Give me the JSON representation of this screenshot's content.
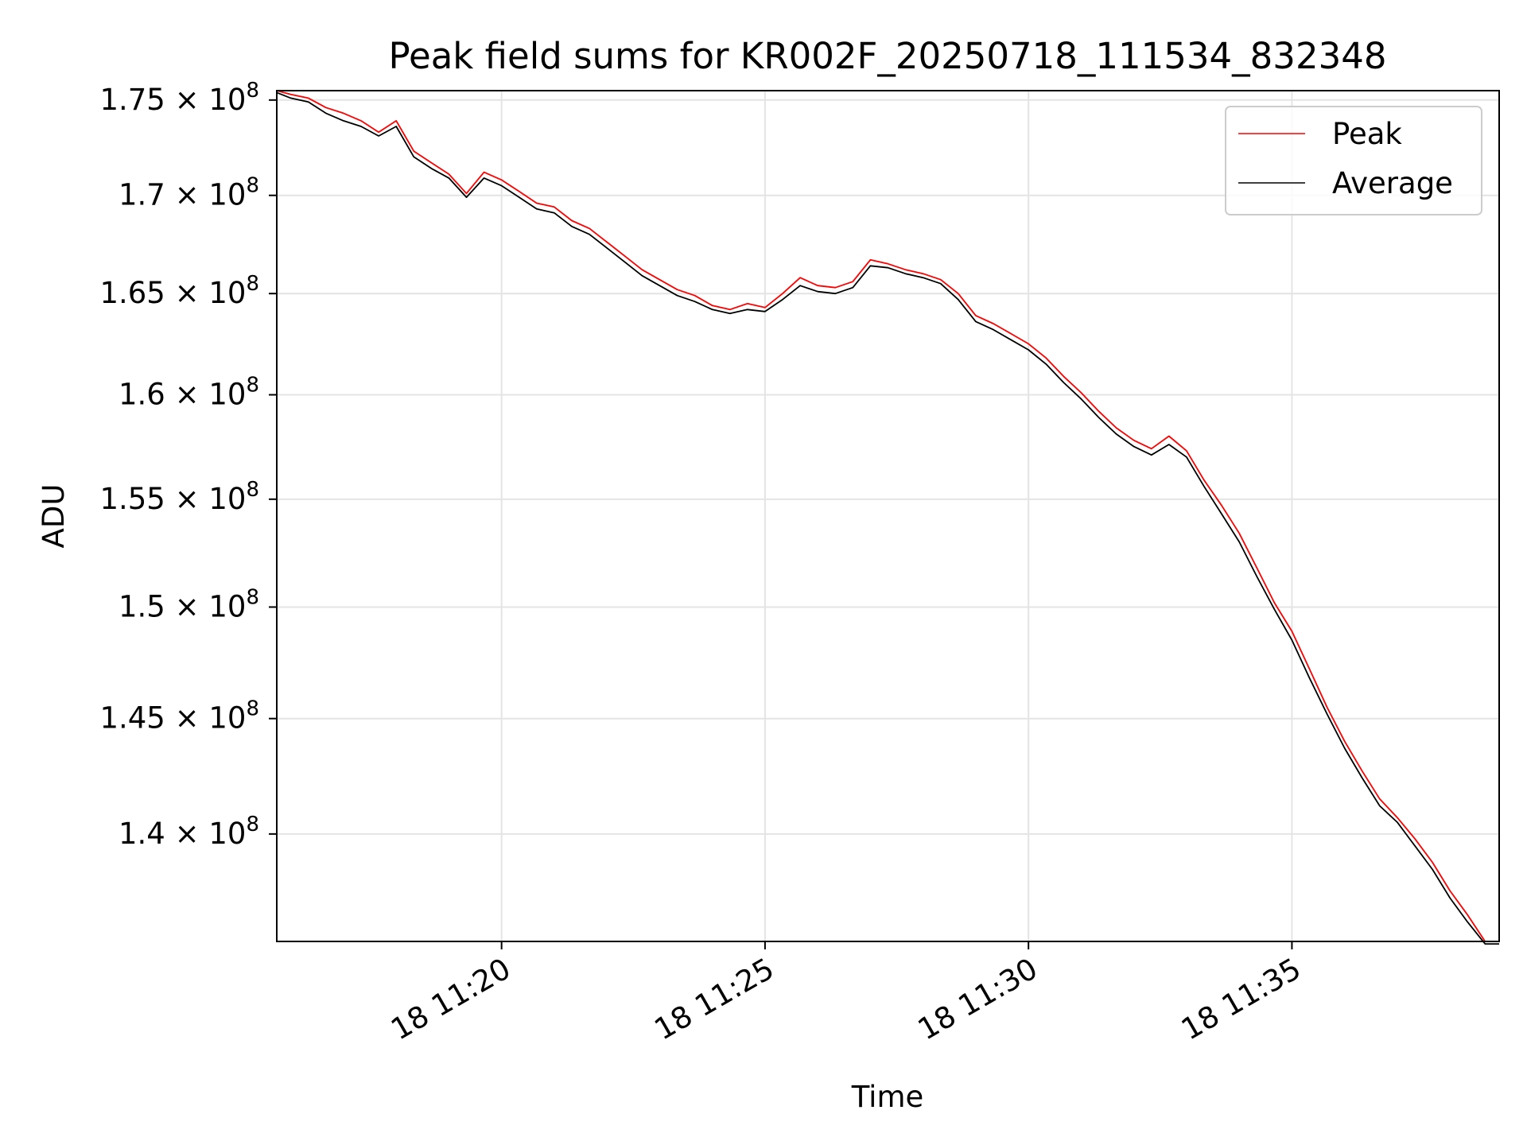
{
  "chart_data": {
    "type": "line",
    "title": "Peak field sums for KR002F_20250718_111534_832348",
    "xlabel": "Time",
    "ylabel": "ADU",
    "x_axis": {
      "kind": "datetime",
      "range": [
        "2025-07-18 11:15:44",
        "2025-07-18 11:38:56"
      ],
      "ticks": [
        {
          "value": "2025-07-18 11:20",
          "label": "18 11:20"
        },
        {
          "value": "2025-07-18 11:25",
          "label": "18 11:25"
        },
        {
          "value": "2025-07-18 11:30",
          "label": "18 11:30"
        },
        {
          "value": "2025-07-18 11:35",
          "label": "18 11:35"
        }
      ]
    },
    "y_axis": {
      "scale": "log",
      "range": [
        135500000,
        175500000
      ],
      "ticks": [
        {
          "value": 175000000,
          "mantissa": "1.75",
          "base": "10",
          "exp": "8"
        },
        {
          "value": 170000000,
          "mantissa": "1.7",
          "base": "10",
          "exp": "8"
        },
        {
          "value": 165000000,
          "mantissa": "1.65",
          "base": "10",
          "exp": "8"
        },
        {
          "value": 160000000,
          "mantissa": "1.6",
          "base": "10",
          "exp": "8"
        },
        {
          "value": 155000000,
          "mantissa": "1.55",
          "base": "10",
          "exp": "8"
        },
        {
          "value": 150000000,
          "mantissa": "1.5",
          "base": "10",
          "exp": "8"
        },
        {
          "value": 145000000,
          "mantissa": "1.45",
          "base": "10",
          "exp": "8"
        },
        {
          "value": 140000000,
          "mantissa": "1.4",
          "base": "10",
          "exp": "8"
        }
      ]
    },
    "grid": true,
    "legend": {
      "position": "upper right"
    },
    "series": [
      {
        "name": "Peak",
        "color": "#ff0000",
        "points": [
          [
            "2025-07-18 11:15:44",
            175500000
          ],
          [
            "2025-07-18 11:16:00",
            175300000
          ],
          [
            "2025-07-18 11:16:20",
            175100000
          ],
          [
            "2025-07-18 11:16:40",
            174600000
          ],
          [
            "2025-07-18 11:17:00",
            174300000
          ],
          [
            "2025-07-18 11:17:20",
            173900000
          ],
          [
            "2025-07-18 11:17:40",
            173300000
          ],
          [
            "2025-07-18 11:18:00",
            173900000
          ],
          [
            "2025-07-18 11:18:20",
            172300000
          ],
          [
            "2025-07-18 11:18:40",
            171700000
          ],
          [
            "2025-07-18 11:19:00",
            171100000
          ],
          [
            "2025-07-18 11:19:20",
            170100000
          ],
          [
            "2025-07-18 11:19:40",
            171200000
          ],
          [
            "2025-07-18 11:20:00",
            170800000
          ],
          [
            "2025-07-18 11:20:20",
            170200000
          ],
          [
            "2025-07-18 11:20:40",
            169600000
          ],
          [
            "2025-07-18 11:21:00",
            169400000
          ],
          [
            "2025-07-18 11:21:20",
            168700000
          ],
          [
            "2025-07-18 11:21:40",
            168300000
          ],
          [
            "2025-07-18 11:22:00",
            167600000
          ],
          [
            "2025-07-18 11:22:20",
            166900000
          ],
          [
            "2025-07-18 11:22:40",
            166200000
          ],
          [
            "2025-07-18 11:23:00",
            165700000
          ],
          [
            "2025-07-18 11:23:20",
            165200000
          ],
          [
            "2025-07-18 11:23:40",
            164900000
          ],
          [
            "2025-07-18 11:24:00",
            164400000
          ],
          [
            "2025-07-18 11:24:20",
            164200000
          ],
          [
            "2025-07-18 11:24:40",
            164500000
          ],
          [
            "2025-07-18 11:25:00",
            164300000
          ],
          [
            "2025-07-18 11:25:20",
            165000000
          ],
          [
            "2025-07-18 11:25:40",
            165800000
          ],
          [
            "2025-07-18 11:26:00",
            165400000
          ],
          [
            "2025-07-18 11:26:20",
            165300000
          ],
          [
            "2025-07-18 11:26:40",
            165600000
          ],
          [
            "2025-07-18 11:27:00",
            166700000
          ],
          [
            "2025-07-18 11:27:20",
            166500000
          ],
          [
            "2025-07-18 11:27:40",
            166200000
          ],
          [
            "2025-07-18 11:28:00",
            166000000
          ],
          [
            "2025-07-18 11:28:20",
            165700000
          ],
          [
            "2025-07-18 11:28:40",
            165000000
          ],
          [
            "2025-07-18 11:29:00",
            163900000
          ],
          [
            "2025-07-18 11:29:20",
            163500000
          ],
          [
            "2025-07-18 11:29:40",
            163000000
          ],
          [
            "2025-07-18 11:30:00",
            162500000
          ],
          [
            "2025-07-18 11:30:20",
            161800000
          ],
          [
            "2025-07-18 11:30:40",
            160900000
          ],
          [
            "2025-07-18 11:31:00",
            160100000
          ],
          [
            "2025-07-18 11:31:20",
            159200000
          ],
          [
            "2025-07-18 11:31:40",
            158400000
          ],
          [
            "2025-07-18 11:32:00",
            157800000
          ],
          [
            "2025-07-18 11:32:20",
            157400000
          ],
          [
            "2025-07-18 11:32:40",
            158000000
          ],
          [
            "2025-07-18 11:33:00",
            157300000
          ],
          [
            "2025-07-18 11:33:20",
            155900000
          ],
          [
            "2025-07-18 11:33:40",
            154700000
          ],
          [
            "2025-07-18 11:34:00",
            153400000
          ],
          [
            "2025-07-18 11:34:20",
            151800000
          ],
          [
            "2025-07-18 11:34:40",
            150200000
          ],
          [
            "2025-07-18 11:35:00",
            148900000
          ],
          [
            "2025-07-18 11:35:20",
            147200000
          ],
          [
            "2025-07-18 11:35:40",
            145500000
          ],
          [
            "2025-07-18 11:36:00",
            144000000
          ],
          [
            "2025-07-18 11:36:20",
            142700000
          ],
          [
            "2025-07-18 11:36:40",
            141500000
          ],
          [
            "2025-07-18 11:37:00",
            140700000
          ],
          [
            "2025-07-18 11:37:20",
            139800000
          ],
          [
            "2025-07-18 11:37:40",
            138800000
          ],
          [
            "2025-07-18 11:38:00",
            137600000
          ],
          [
            "2025-07-18 11:38:20",
            136600000
          ],
          [
            "2025-07-18 11:38:40",
            135500000
          ],
          [
            "2025-07-18 11:38:56",
            135500000
          ]
        ]
      },
      {
        "name": "Average",
        "color": "#000000",
        "points": [
          [
            "2025-07-18 11:15:44",
            175400000
          ],
          [
            "2025-07-18 11:16:00",
            175100000
          ],
          [
            "2025-07-18 11:16:20",
            174900000
          ],
          [
            "2025-07-18 11:16:40",
            174300000
          ],
          [
            "2025-07-18 11:17:00",
            173900000
          ],
          [
            "2025-07-18 11:17:20",
            173600000
          ],
          [
            "2025-07-18 11:17:40",
            173100000
          ],
          [
            "2025-07-18 11:18:00",
            173600000
          ],
          [
            "2025-07-18 11:18:20",
            172000000
          ],
          [
            "2025-07-18 11:18:40",
            171400000
          ],
          [
            "2025-07-18 11:19:00",
            170900000
          ],
          [
            "2025-07-18 11:19:20",
            169900000
          ],
          [
            "2025-07-18 11:19:40",
            170900000
          ],
          [
            "2025-07-18 11:20:00",
            170500000
          ],
          [
            "2025-07-18 11:20:20",
            169900000
          ],
          [
            "2025-07-18 11:20:40",
            169300000
          ],
          [
            "2025-07-18 11:21:00",
            169100000
          ],
          [
            "2025-07-18 11:21:20",
            168400000
          ],
          [
            "2025-07-18 11:21:40",
            168000000
          ],
          [
            "2025-07-18 11:22:00",
            167300000
          ],
          [
            "2025-07-18 11:22:20",
            166600000
          ],
          [
            "2025-07-18 11:22:40",
            165900000
          ],
          [
            "2025-07-18 11:23:00",
            165400000
          ],
          [
            "2025-07-18 11:23:20",
            164900000
          ],
          [
            "2025-07-18 11:23:40",
            164600000
          ],
          [
            "2025-07-18 11:24:00",
            164200000
          ],
          [
            "2025-07-18 11:24:20",
            164000000
          ],
          [
            "2025-07-18 11:24:40",
            164200000
          ],
          [
            "2025-07-18 11:25:00",
            164100000
          ],
          [
            "2025-07-18 11:25:20",
            164700000
          ],
          [
            "2025-07-18 11:25:40",
            165400000
          ],
          [
            "2025-07-18 11:26:00",
            165100000
          ],
          [
            "2025-07-18 11:26:20",
            165000000
          ],
          [
            "2025-07-18 11:26:40",
            165300000
          ],
          [
            "2025-07-18 11:27:00",
            166400000
          ],
          [
            "2025-07-18 11:27:20",
            166300000
          ],
          [
            "2025-07-18 11:27:40",
            166000000
          ],
          [
            "2025-07-18 11:28:00",
            165800000
          ],
          [
            "2025-07-18 11:28:20",
            165500000
          ],
          [
            "2025-07-18 11:28:40",
            164700000
          ],
          [
            "2025-07-18 11:29:00",
            163600000
          ],
          [
            "2025-07-18 11:29:20",
            163200000
          ],
          [
            "2025-07-18 11:29:40",
            162700000
          ],
          [
            "2025-07-18 11:30:00",
            162200000
          ],
          [
            "2025-07-18 11:30:20",
            161500000
          ],
          [
            "2025-07-18 11:30:40",
            160600000
          ],
          [
            "2025-07-18 11:31:00",
            159800000
          ],
          [
            "2025-07-18 11:31:20",
            158900000
          ],
          [
            "2025-07-18 11:31:40",
            158100000
          ],
          [
            "2025-07-18 11:32:00",
            157500000
          ],
          [
            "2025-07-18 11:32:20",
            157100000
          ],
          [
            "2025-07-18 11:32:40",
            157600000
          ],
          [
            "2025-07-18 11:33:00",
            157000000
          ],
          [
            "2025-07-18 11:33:20",
            155600000
          ],
          [
            "2025-07-18 11:33:40",
            154300000
          ],
          [
            "2025-07-18 11:34:00",
            153000000
          ],
          [
            "2025-07-18 11:34:20",
            151400000
          ],
          [
            "2025-07-18 11:34:40",
            149900000
          ],
          [
            "2025-07-18 11:35:00",
            148500000
          ],
          [
            "2025-07-18 11:35:20",
            146800000
          ],
          [
            "2025-07-18 11:35:40",
            145200000
          ],
          [
            "2025-07-18 11:36:00",
            143700000
          ],
          [
            "2025-07-18 11:36:20",
            142400000
          ],
          [
            "2025-07-18 11:36:40",
            141200000
          ],
          [
            "2025-07-18 11:37:00",
            140500000
          ],
          [
            "2025-07-18 11:37:20",
            139500000
          ],
          [
            "2025-07-18 11:37:40",
            138500000
          ],
          [
            "2025-07-18 11:38:00",
            137300000
          ],
          [
            "2025-07-18 11:38:20",
            136300000
          ],
          [
            "2025-07-18 11:38:40",
            135400000
          ],
          [
            "2025-07-18 11:38:56",
            135400000
          ]
        ]
      }
    ]
  }
}
